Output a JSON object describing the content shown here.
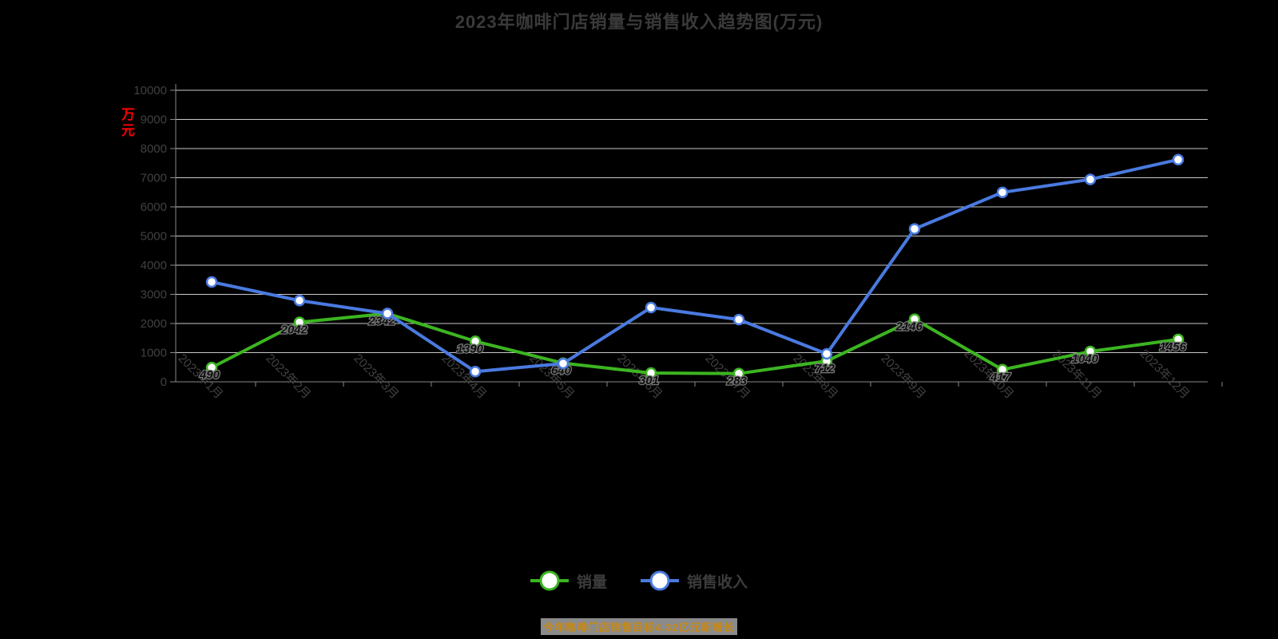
{
  "title": {
    "text": "2023年咖啡门店销量与销售收入趋势图(万元)"
  },
  "y_axis": {
    "name": "万元",
    "max": 10000,
    "min": 0,
    "interval": 1000,
    "tick_labels": [
      "10000",
      "9000",
      "8000",
      "7000",
      "6000",
      "5000",
      "4000",
      "3000",
      "2000",
      "1000",
      "0"
    ]
  },
  "x_axis": {
    "labels": [
      "2023年1月",
      "2023年2月",
      "2023年3月",
      "2023年4月",
      "2023年5月",
      "2023年6月",
      "2023年7月",
      "2023年8月",
      "2023年9月",
      "2023年10月",
      "2023年11月",
      "2023年12月"
    ]
  },
  "legend": {
    "items": [
      {
        "label": "销量",
        "color": "#3cb521"
      },
      {
        "label": "销售收入",
        "color": "#4a7ae0"
      }
    ]
  },
  "caption": {
    "text": "今年咖啡门店销售目标4.32亿元新增长",
    "color": "#c98912",
    "highlight": "#8b8b8b"
  },
  "colors": {
    "background": "#000000",
    "gridline": "#c9c9c9",
    "axis_line": "#888888",
    "title_text": "#3a3a3a",
    "axis_text": "#414141",
    "data_label_fill": "#0e0e0e",
    "data_label_outline": "#777777",
    "axis_name_red": "#ff0000",
    "marker_fill": "#ffffff"
  },
  "chart_data": {
    "type": "line",
    "title": "2023年咖啡门店销量与销售收入趋势图(万元)",
    "categories": [
      "2023年1月",
      "2023年2月",
      "2023年3月",
      "2023年4月",
      "2023年5月",
      "2023年6月",
      "2023年7月",
      "2023年8月",
      "2023年9月",
      "2023年10月",
      "2023年11月",
      "2023年12月"
    ],
    "series": [
      {
        "name": "销量",
        "color": "#3cb521",
        "marker": "circle-hollow",
        "show_labels": true,
        "values": [
          490,
          2042,
          2342,
          1390,
          640,
          301,
          283,
          712,
          2146,
          417,
          1040,
          1456
        ]
      },
      {
        "name": "销售收入",
        "color": "#4a7ae0",
        "marker": "circle-hollow",
        "show_labels": false,
        "values": [
          3425,
          2786,
          2342,
          350,
          628,
          2547,
          2134,
          960,
          5243,
          6498,
          6943,
          7621
        ]
      }
    ],
    "xlabel": "",
    "ylabel": "万元",
    "ylim": [
      0,
      10000
    ],
    "y_interval": 1000,
    "grid": true,
    "legend_position": "bottom",
    "x_label_rotation": 45
  }
}
